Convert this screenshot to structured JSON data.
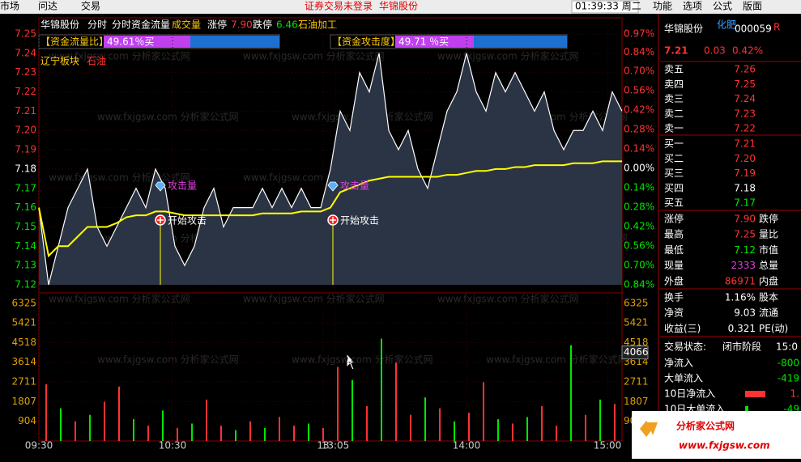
{
  "menu": {
    "left": [
      "市场",
      "问达",
      "交易"
    ],
    "status": "证券交易未登录",
    "stock": "华锦股份",
    "clock": "01:39:33 周二",
    "right": [
      "功能",
      "选项",
      "公式",
      "版面"
    ]
  },
  "chart_data": {
    "type": "line",
    "header": {
      "name": "华锦股份",
      "tabs": [
        "分时",
        "分时资金流量",
        "成交量"
      ],
      "limit_up_label": "涨停",
      "limit_up": "7.90",
      "limit_down_label": "跌停",
      "limit_down": "6.46",
      "industry": "石油加工"
    },
    "indicators": [
      {
        "label": "【资金流量比】",
        "value": "49.61％买"
      },
      {
        "label": "【资金攻击度】",
        "value": "49.71 ％买"
      }
    ],
    "sector": {
      "label": "辽宁板块",
      "name": "石油"
    },
    "annotations": [
      {
        "x": 50,
        "top": "攻击量",
        "bottom": "开始攻击"
      },
      {
        "x": 121,
        "top": "攻击量",
        "bottom": "开始攻击"
      }
    ],
    "xlim": [
      0,
      240
    ],
    "xticks": [
      {
        "value": 0,
        "label": "09:30"
      },
      {
        "value": 55,
        "label": "10:30"
      },
      {
        "value": 117,
        "label": "13"
      },
      {
        "value": 122,
        "label": "13:05"
      },
      {
        "value": 176,
        "label": "14:00"
      },
      {
        "value": 234,
        "label": "15:00"
      }
    ],
    "ylim": [
      7.12,
      7.25
    ],
    "prev_close": 7.18,
    "yticks": [
      7.25,
      7.24,
      7.23,
      7.22,
      7.21,
      {
        "value": 7.2,
        "label": "7.20"
      },
      7.19,
      7.18,
      7.17,
      7.16,
      7.15,
      7.14,
      7.13,
      7.12
    ],
    "y2lim": [
      -0.84,
      0.97
    ],
    "y2ticks": [
      {
        "value": 0.97,
        "label": "0.97%"
      },
      {
        "value": 0.84,
        "label": "0.84%"
      },
      {
        "value": 0.7,
        "label": "0.70%"
      },
      {
        "value": 0.56,
        "label": "0.56%"
      },
      {
        "value": 0.42,
        "label": "0.42%"
      },
      {
        "value": 0.28,
        "label": "0.28%"
      },
      {
        "value": 0.14,
        "label": "0.14%"
      },
      {
        "value": 0,
        "label": "0.00%"
      },
      {
        "value": -0.14,
        "label": "0.14%"
      },
      {
        "value": -0.28,
        "label": "0.28%"
      },
      {
        "value": -0.42,
        "label": "0.42%"
      },
      {
        "value": -0.56,
        "label": "0.56%"
      },
      {
        "value": -0.7,
        "label": "0.70%"
      },
      {
        "value": -0.84,
        "label": "0.84%"
      }
    ],
    "x": [
      0,
      4,
      8,
      12,
      16,
      20,
      24,
      28,
      32,
      36,
      40,
      44,
      48,
      52,
      56,
      60,
      64,
      68,
      72,
      76,
      80,
      84,
      88,
      92,
      96,
      100,
      104,
      108,
      112,
      116,
      120,
      124,
      128,
      132,
      136,
      140,
      144,
      148,
      152,
      156,
      160,
      164,
      168,
      172,
      176,
      180,
      184,
      188,
      192,
      196,
      200,
      204,
      208,
      212,
      216,
      220,
      224,
      228,
      232,
      236,
      240
    ],
    "series": [
      {
        "color": "#ffffff",
        "values": [
          7.16,
          7.12,
          7.14,
          7.16,
          7.17,
          7.18,
          7.15,
          7.14,
          7.15,
          7.16,
          7.17,
          7.16,
          7.18,
          7.17,
          7.14,
          7.13,
          7.14,
          7.16,
          7.17,
          7.15,
          7.16,
          7.16,
          7.16,
          7.17,
          7.16,
          7.17,
          7.16,
          7.17,
          7.16,
          7.16,
          7.18,
          7.21,
          7.2,
          7.23,
          7.22,
          7.24,
          7.2,
          7.19,
          7.2,
          7.18,
          7.17,
          7.19,
          7.21,
          7.22,
          7.24,
          7.22,
          7.21,
          7.23,
          7.22,
          7.23,
          7.22,
          7.21,
          7.22,
          7.2,
          7.19,
          7.2,
          7.2,
          7.21,
          7.2,
          7.22,
          7.21
        ]
      },
      {
        "color": "#ffff00",
        "values": [
          7.16,
          7.135,
          7.14,
          7.14,
          7.145,
          7.15,
          7.15,
          7.15,
          7.152,
          7.155,
          7.156,
          7.156,
          7.158,
          7.158,
          7.157,
          7.156,
          7.156,
          7.156,
          7.156,
          7.156,
          7.156,
          7.156,
          7.156,
          7.157,
          7.157,
          7.157,
          7.157,
          7.158,
          7.158,
          7.158,
          7.16,
          7.168,
          7.17,
          7.172,
          7.174,
          7.175,
          7.176,
          7.176,
          7.176,
          7.176,
          7.176,
          7.176,
          7.177,
          7.177,
          7.178,
          7.179,
          7.179,
          7.18,
          7.18,
          7.181,
          7.181,
          7.182,
          7.182,
          7.182,
          7.182,
          7.183,
          7.183,
          7.183,
          7.184,
          7.184,
          7.184
        ]
      }
    ],
    "volume": {
      "ylim": [
        0,
        6800
      ],
      "yticks": [
        904,
        1807,
        2711,
        3614,
        4518,
        5421,
        6325
      ],
      "cursor": 4066,
      "x": [
        3,
        9,
        15,
        21,
        27,
        33,
        39,
        45,
        51,
        57,
        63,
        69,
        75,
        81,
        87,
        93,
        99,
        105,
        111,
        117,
        123,
        129,
        135,
        141,
        147,
        153,
        159,
        165,
        171,
        177,
        183,
        189,
        195,
        201,
        207,
        213,
        219,
        225,
        231,
        237
      ],
      "values": [
        2600,
        1500,
        900,
        1200,
        1800,
        2500,
        1000,
        700,
        1400,
        600,
        800,
        1900,
        700,
        500,
        900,
        600,
        1100,
        700,
        800,
        600,
        3400,
        2800,
        1600,
        4700,
        3600,
        1200,
        2000,
        1500,
        900,
        1300,
        2700,
        1000,
        800,
        1100,
        1600,
        700,
        4400,
        1200,
        1900,
        1700
      ],
      "colors": [
        "#ff3232",
        "#00e600",
        "#ff3232",
        "#00e600",
        "#ff3232",
        "#ff3232",
        "#00e600",
        "#ff3232",
        "#00e600",
        "#ff3232",
        "#00e600",
        "#ff3232",
        "#ff3232",
        "#00e600",
        "#ff3232",
        "#00e600",
        "#ff3232",
        "#ff3232",
        "#00e600",
        "#ff3232",
        "#ff3232",
        "#00e600",
        "#ff3232",
        "#00e600",
        "#ff3232",
        "#ff3232",
        "#00e600",
        "#ff3232",
        "#00e600",
        "#ff3232",
        "#ff3232",
        "#00e600",
        "#ff3232",
        "#00e600",
        "#ff3232",
        "#ff3232",
        "#00e600",
        "#ff3232",
        "#00e600",
        "#ff3232"
      ]
    }
  },
  "quote": {
    "name": "华锦股份",
    "tag": "化肥",
    "code": "000059",
    "market": "R",
    "price": "7.21",
    "change": "0.03",
    "pct": "0.42%",
    "asks": [
      {
        "label": "卖五",
        "price": "7.26",
        "color": "#ff3232"
      },
      {
        "label": "卖四",
        "price": "7.25",
        "color": "#ff3232"
      },
      {
        "label": "卖三",
        "price": "7.24",
        "color": "#ff3232"
      },
      {
        "label": "卖二",
        "price": "7.23",
        "color": "#ff3232"
      },
      {
        "label": "卖一",
        "price": "7.22",
        "color": "#ff3232"
      }
    ],
    "bids": [
      {
        "label": "买一",
        "price": "7.21",
        "color": "#ff3232"
      },
      {
        "label": "买二",
        "price": "7.20",
        "color": "#ff3232"
      },
      {
        "label": "买三",
        "price": "7.19",
        "color": "#ff3232"
      },
      {
        "label": "买四",
        "price": "7.18",
        "color": "#ffffff"
      },
      {
        "label": "买五",
        "price": "7.17",
        "color": "#00e600"
      }
    ],
    "stats": [
      {
        "label": "涨停",
        "value": "7.90",
        "color": "#ff3232",
        "label2": "跌停"
      },
      {
        "label": "最高",
        "value": "7.25",
        "color": "#ff3232",
        "label2": "量比"
      },
      {
        "label": "最低",
        "value": "7.12",
        "color": "#00e600",
        "label2": "市值"
      },
      {
        "label": "现量",
        "value": "2333",
        "color": "#e040e0",
        "label2": "总量"
      },
      {
        "label": "外盘",
        "value": "86971",
        "color": "#ff3232",
        "label2": "内盘"
      }
    ],
    "stats2": [
      {
        "label": "换手",
        "value": "1.16%",
        "color": "#ffffff",
        "label2": "股本"
      },
      {
        "label": "净资",
        "value": "9.03",
        "color": "#ffffff",
        "label2": "流通"
      },
      {
        "label": "收益(三)",
        "value": "0.321",
        "color": "#ffffff",
        "label2": "PE(动)"
      }
    ],
    "status_label": "交易状态:",
    "status": "闭市阶段",
    "status_time": "15:0",
    "flows": [
      {
        "label": "净流入",
        "value": "-800",
        "color": "#00e600"
      },
      {
        "label": "大单流入",
        "value": "-419",
        "color": "#00e600"
      },
      {
        "label": "10日净流入",
        "value": "1.",
        "color": "#ff3232"
      },
      {
        "label": "10日大单流入",
        "value": "-49",
        "color": "#00e600"
      }
    ]
  },
  "watermark": "www.fxjgsw.com 分析家公式网",
  "logo": {
    "name": "分析家公式网",
    "url": "www.fxjgsw.com"
  }
}
